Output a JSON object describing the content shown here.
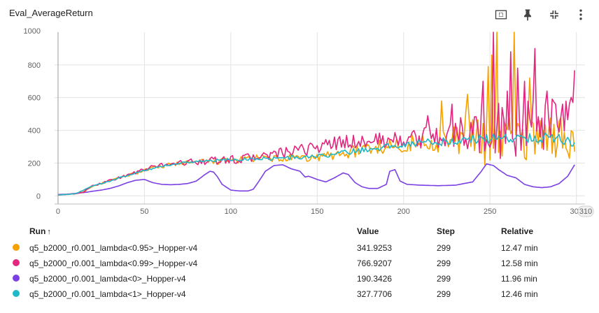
{
  "title": "Eval_AverageReturn",
  "toolbar": {
    "icons": [
      "fit-domain-icon",
      "pin-icon",
      "collapse-icon",
      "more-vert-icon"
    ]
  },
  "chart_data": {
    "type": "line",
    "x_ticks": [
      0,
      50,
      100,
      150,
      200,
      250,
      300
    ],
    "x_edge_label": "310",
    "y_ticks": [
      0,
      200,
      400,
      600,
      800
    ],
    "y_top_label": "1000",
    "xlim": [
      -2,
      305
    ],
    "ylim": [
      -50,
      1000
    ],
    "grid": true,
    "series": [
      {
        "name": "q5_b2000_r0.001_lambda<0>_Hopper-v4",
        "color": "#7b3fe4",
        "anchors": [
          [
            0,
            8
          ],
          [
            5,
            10
          ],
          [
            10,
            15
          ],
          [
            15,
            20
          ],
          [
            20,
            28
          ],
          [
            25,
            35
          ],
          [
            30,
            45
          ],
          [
            35,
            60
          ],
          [
            40,
            80
          ],
          [
            45,
            95
          ],
          [
            50,
            100
          ],
          [
            55,
            80
          ],
          [
            60,
            70
          ],
          [
            65,
            68
          ],
          [
            70,
            70
          ],
          [
            75,
            75
          ],
          [
            80,
            90
          ],
          [
            85,
            130
          ],
          [
            88,
            150
          ],
          [
            90,
            145
          ],
          [
            92,
            120
          ],
          [
            95,
            70
          ],
          [
            100,
            35
          ],
          [
            105,
            30
          ],
          [
            110,
            30
          ],
          [
            113,
            40
          ],
          [
            116,
            85
          ],
          [
            120,
            150
          ],
          [
            125,
            185
          ],
          [
            130,
            190
          ],
          [
            135,
            165
          ],
          [
            140,
            150
          ],
          [
            143,
            115
          ],
          [
            145,
            120
          ],
          [
            150,
            100
          ],
          [
            155,
            85
          ],
          [
            160,
            110
          ],
          [
            165,
            140
          ],
          [
            168,
            130
          ],
          [
            172,
            80
          ],
          [
            176,
            55
          ],
          [
            180,
            45
          ],
          [
            185,
            45
          ],
          [
            190,
            70
          ],
          [
            192,
            150
          ],
          [
            195,
            160
          ],
          [
            198,
            90
          ],
          [
            202,
            70
          ],
          [
            210,
            65
          ],
          [
            220,
            62
          ],
          [
            230,
            65
          ],
          [
            240,
            85
          ],
          [
            245,
            150
          ],
          [
            248,
            195
          ],
          [
            252,
            185
          ],
          [
            255,
            160
          ],
          [
            260,
            125
          ],
          [
            265,
            110
          ],
          [
            270,
            70
          ],
          [
            275,
            55
          ],
          [
            280,
            50
          ],
          [
            285,
            55
          ],
          [
            290,
            75
          ],
          [
            295,
            120
          ],
          [
            299,
            190
          ]
        ]
      },
      {
        "name": "q5_b2000_r0.001_lambda<0.95>_Hopper-v4",
        "color": "#f5a200",
        "anchors": [
          [
            0,
            5
          ],
          [
            10,
            12
          ],
          [
            15,
            25
          ],
          [
            20,
            60
          ],
          [
            30,
            90
          ],
          [
            40,
            125
          ],
          [
            50,
            155
          ],
          [
            60,
            180
          ],
          [
            70,
            200
          ],
          [
            80,
            205
          ],
          [
            90,
            210
          ],
          [
            100,
            215
          ],
          [
            110,
            225
          ],
          [
            120,
            230
          ],
          [
            130,
            225
          ],
          [
            140,
            225
          ],
          [
            150,
            235
          ],
          [
            160,
            250
          ],
          [
            170,
            270
          ],
          [
            180,
            290
          ],
          [
            190,
            305
          ],
          [
            200,
            315
          ],
          [
            210,
            325
          ],
          [
            220,
            335
          ],
          [
            230,
            345
          ],
          [
            240,
            340
          ],
          [
            250,
            350
          ],
          [
            260,
            360
          ],
          [
            270,
            360
          ],
          [
            280,
            370
          ],
          [
            290,
            360
          ],
          [
            299,
            340
          ]
        ],
        "noise": [
          [
            0,
            0
          ],
          [
            150,
            30
          ],
          [
            200,
            50
          ],
          [
            230,
            80
          ],
          [
            250,
            180
          ],
          [
            299,
            120
          ]
        ],
        "spikes": [
          [
            222,
            580
          ],
          [
            236,
            510
          ],
          [
            237,
            620
          ],
          [
            249,
            790
          ],
          [
            251,
            860
          ],
          [
            254,
            1000
          ],
          [
            264,
            1000
          ],
          [
            273,
            720
          ],
          [
            279,
            460
          ]
        ]
      },
      {
        "name": "q5_b2000_r0.001_lambda<0.99>_Hopper-v4",
        "color": "#e3267f",
        "anchors": [
          [
            0,
            5
          ],
          [
            10,
            12
          ],
          [
            15,
            25
          ],
          [
            20,
            60
          ],
          [
            30,
            95
          ],
          [
            40,
            125
          ],
          [
            50,
            160
          ],
          [
            60,
            190
          ],
          [
            70,
            200
          ],
          [
            80,
            210
          ],
          [
            90,
            215
          ],
          [
            100,
            220
          ],
          [
            110,
            230
          ],
          [
            120,
            245
          ],
          [
            130,
            260
          ],
          [
            140,
            275
          ],
          [
            150,
            300
          ],
          [
            160,
            320
          ],
          [
            170,
            330
          ],
          [
            180,
            335
          ],
          [
            190,
            340
          ],
          [
            200,
            345
          ],
          [
            210,
            350
          ],
          [
            220,
            360
          ],
          [
            230,
            380
          ],
          [
            240,
            380
          ],
          [
            250,
            400
          ],
          [
            260,
            400
          ],
          [
            270,
            420
          ],
          [
            280,
            430
          ],
          [
            290,
            430
          ],
          [
            299,
            500
          ]
        ],
        "noise": [
          [
            0,
            0
          ],
          [
            100,
            25
          ],
          [
            150,
            40
          ],
          [
            200,
            50
          ],
          [
            230,
            90
          ],
          [
            250,
            180
          ],
          [
            299,
            160
          ]
        ],
        "spikes": [
          [
            214,
            490
          ],
          [
            228,
            560
          ],
          [
            246,
            700
          ],
          [
            252,
            1000
          ],
          [
            257,
            540
          ],
          [
            260,
            640
          ],
          [
            262,
            880
          ],
          [
            266,
            780
          ],
          [
            270,
            700
          ],
          [
            276,
            900
          ],
          [
            283,
            640
          ],
          [
            288,
            560
          ],
          [
            292,
            560
          ],
          [
            298,
            570
          ],
          [
            299,
            767
          ]
        ]
      },
      {
        "name": "q5_b2000_r0.001_lambda<1>_Hopper-v4",
        "color": "#1fb8c8",
        "anchors": [
          [
            0,
            5
          ],
          [
            10,
            12
          ],
          [
            20,
            60
          ],
          [
            30,
            90
          ],
          [
            40,
            125
          ],
          [
            50,
            155
          ],
          [
            60,
            180
          ],
          [
            70,
            200
          ],
          [
            80,
            210
          ],
          [
            90,
            215
          ],
          [
            100,
            220
          ],
          [
            110,
            225
          ],
          [
            120,
            228
          ],
          [
            130,
            230
          ],
          [
            140,
            235
          ],
          [
            150,
            240
          ],
          [
            160,
            255
          ],
          [
            170,
            270
          ],
          [
            180,
            285
          ],
          [
            190,
            300
          ],
          [
            200,
            315
          ],
          [
            210,
            325
          ],
          [
            220,
            330
          ],
          [
            230,
            335
          ],
          [
            240,
            345
          ],
          [
            250,
            350
          ],
          [
            260,
            355
          ],
          [
            270,
            355
          ],
          [
            280,
            355
          ],
          [
            290,
            350
          ],
          [
            299,
            330
          ]
        ],
        "noise": [
          [
            0,
            0
          ],
          [
            150,
            15
          ],
          [
            200,
            20
          ],
          [
            240,
            30
          ],
          [
            299,
            30
          ]
        ],
        "spikes": []
      }
    ]
  },
  "legend": {
    "headers": {
      "run": "Run",
      "sort": "↑",
      "value": "Value",
      "step": "Step",
      "relative": "Relative"
    },
    "rows": [
      {
        "color": "#f5a200",
        "run": "q5_b2000_r0.001_lambda<0.95>_Hopper-v4",
        "value": "341.9253",
        "step": "299",
        "relative": "12.47 min"
      },
      {
        "color": "#e3267f",
        "run": "q5_b2000_r0.001_lambda<0.99>_Hopper-v4",
        "value": "766.9207",
        "step": "299",
        "relative": "12.58 min"
      },
      {
        "color": "#7b3fe4",
        "run": "q5_b2000_r0.001_lambda<0>_Hopper-v4",
        "value": "190.3426",
        "step": "299",
        "relative": "11.96 min"
      },
      {
        "color": "#1fb8c8",
        "run": "q5_b2000_r0.001_lambda<1>_Hopper-v4",
        "value": "327.7706",
        "step": "299",
        "relative": "12.46 min"
      }
    ]
  }
}
